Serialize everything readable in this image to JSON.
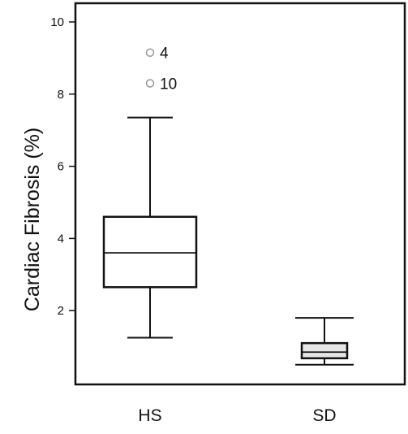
{
  "chart_data": {
    "type": "box",
    "title": "",
    "xlabel": "",
    "ylabel": "Cardiac Fibrosis (%)",
    "ylim": [
      0,
      10.5
    ],
    "yticks": [
      2,
      4,
      6,
      8,
      10
    ],
    "ytick_labels": [
      "2",
      "4",
      "6",
      "8",
      "10"
    ],
    "categories": [
      "HS",
      "SD"
    ],
    "grid": false,
    "legend": "none",
    "boxes": [
      {
        "category": "HS",
        "whisker_low": 1.25,
        "q1": 2.65,
        "median": 3.6,
        "q3": 4.6,
        "whisker_high": 7.35,
        "fill": "#ffffff",
        "outliers": [
          {
            "value": 9.15,
            "label": "4"
          },
          {
            "value": 8.3,
            "label": "10"
          }
        ]
      },
      {
        "category": "SD",
        "whisker_low": 0.5,
        "q1": 0.68,
        "median": 0.85,
        "q3": 1.1,
        "whisker_high": 1.8,
        "fill": "#e6e6e6",
        "outliers": []
      }
    ],
    "colors": {
      "line": "#111111",
      "outlier": "#999999"
    }
  }
}
